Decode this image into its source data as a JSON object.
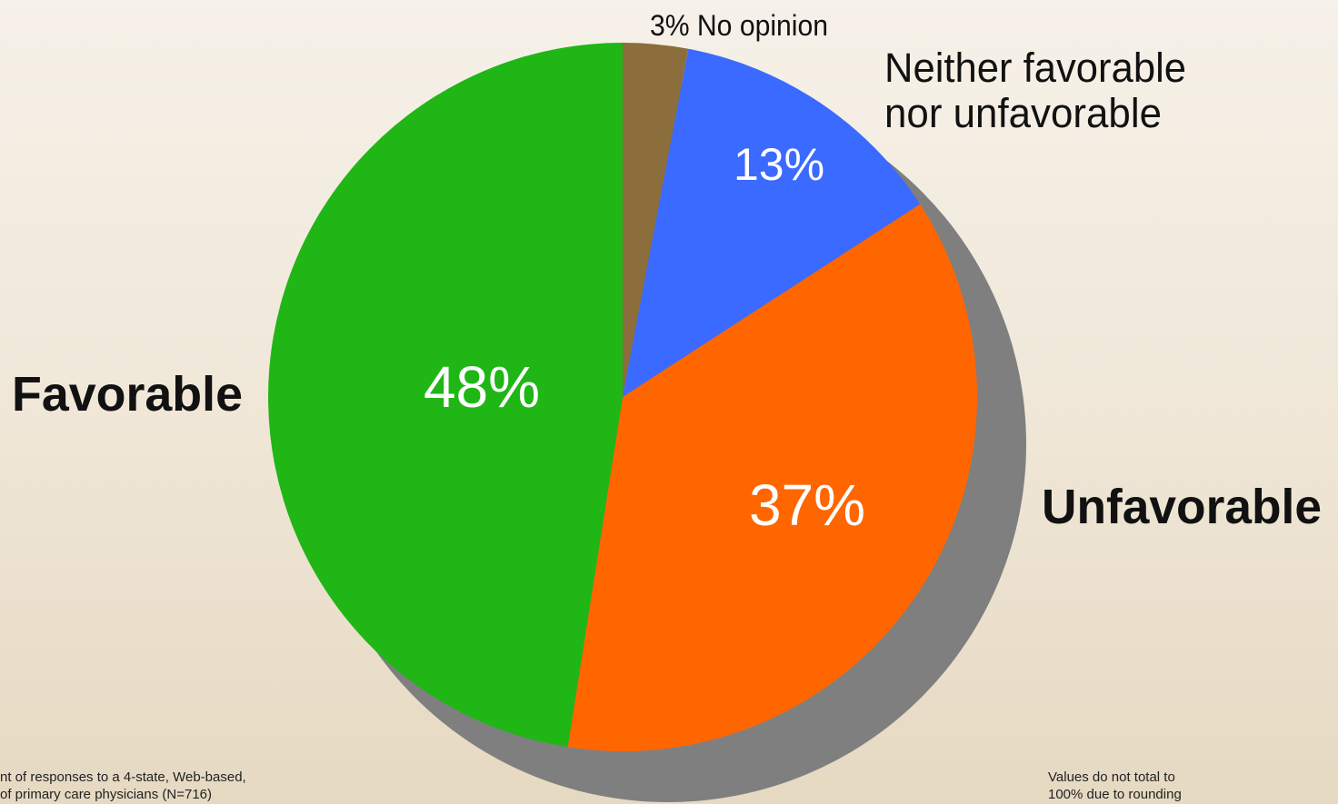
{
  "chart_data": {
    "type": "pie",
    "slices": [
      {
        "category": "No opinion",
        "value": 3,
        "color": "#8b6e3c",
        "value_label": "3%"
      },
      {
        "category": "Neither favorable nor unfavorable",
        "value": 13,
        "color": "#3a6aff",
        "value_label": "13%"
      },
      {
        "category": "Unfavorable",
        "value": 37,
        "color": "#ff6600",
        "value_label": "37%"
      },
      {
        "category": "Favorable",
        "value": 48,
        "color": "#1fb616",
        "value_label": "48%"
      }
    ],
    "labels": {
      "no_opinion": "3% No opinion",
      "neither_line1": "Neither favorable",
      "neither_line2": "nor unfavorable",
      "unfavorable": "Unfavorable",
      "favorable": "Favorable"
    },
    "start": "12 o'clock",
    "direction": "clockwise",
    "shadow_color": "#7f7f7f"
  },
  "notes": {
    "left_line1": "nt of responses to a 4-state, Web-based,",
    "left_line2": "of primary care physicians (N=716)",
    "right_line1": "Values do not total to",
    "right_line2": "100% due to rounding"
  }
}
